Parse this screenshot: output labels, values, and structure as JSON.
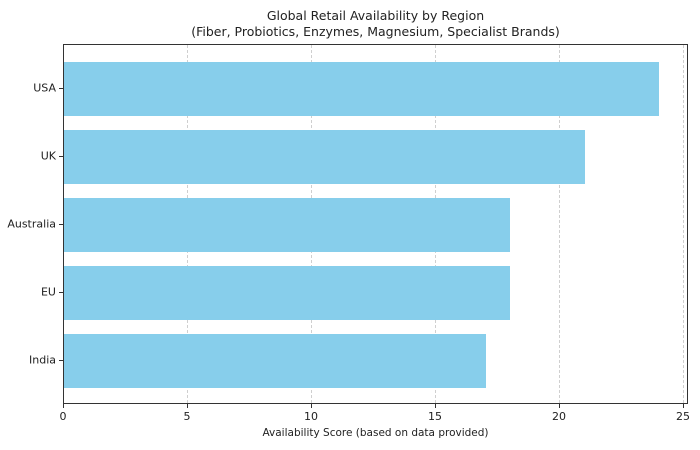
{
  "chart_data": {
    "type": "bar",
    "orientation": "horizontal",
    "title": "Global Retail Availability by Region",
    "subtitle": "(Fiber, Probiotics, Enzymes, Magnesium, Specialist Brands)",
    "categories": [
      "USA",
      "UK",
      "Australia",
      "EU",
      "India"
    ],
    "values": [
      24,
      21,
      18,
      18,
      17
    ],
    "xlabel": "Availability Score (based on data provided)",
    "ylabel": "",
    "xlim": [
      0,
      25.2
    ],
    "xticks": [
      "0",
      "5",
      "10",
      "15",
      "20",
      "25"
    ],
    "grid": "x-dashed",
    "bar_color": "#87CEEB",
    "legend": null
  }
}
